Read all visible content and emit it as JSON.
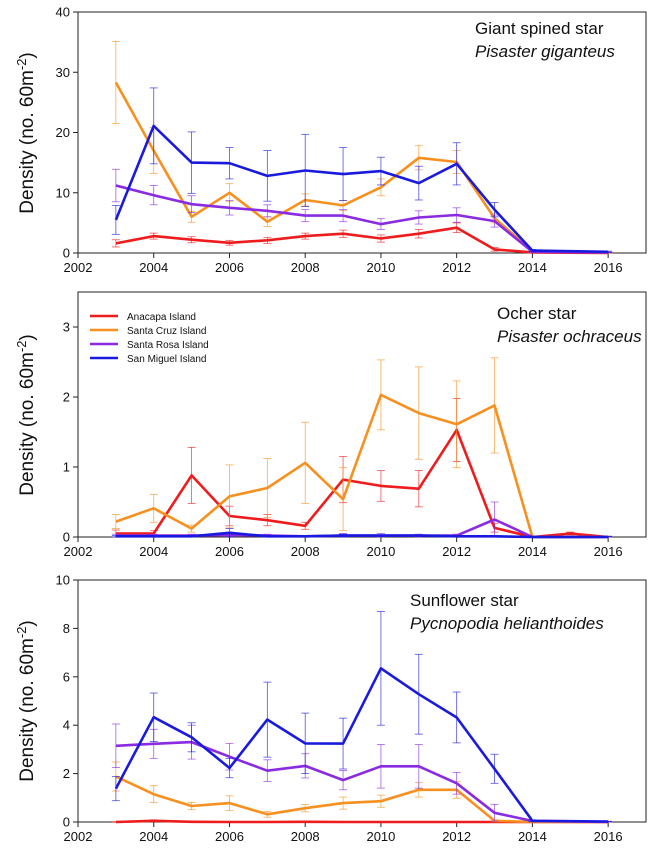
{
  "colors": {
    "Anacapa Island": "#ee1c1c",
    "Santa Cruz Island": "#f7901e",
    "Santa Rosa Island": "#8a2be2",
    "San Miguel Island": "#1a1adf"
  },
  "legend": [
    "Anacapa Island",
    "Santa Cruz Island",
    "Santa Rosa Island",
    "San Miguel Island"
  ],
  "chart_data": [
    {
      "type": "line",
      "title": "Giant spined star",
      "subtitle": "Pisaster giganteus",
      "ylabel_main": "Density (no. 60m",
      "ylabel_sup": "-2",
      "ylabel_tail": ")",
      "xlim": [
        2002,
        2017
      ],
      "ylim": [
        0,
        40
      ],
      "xticks": [
        2002,
        2004,
        2006,
        2008,
        2010,
        2012,
        2014,
        2016
      ],
      "yticks": [
        0,
        10,
        20,
        30,
        40
      ],
      "x": [
        2003,
        2004,
        2005,
        2006,
        2007,
        2008,
        2009,
        2010,
        2011,
        2012,
        2013,
        2014,
        2016
      ],
      "series": [
        {
          "name": "Anacapa Island",
          "values": [
            1.6,
            2.8,
            2.2,
            1.7,
            2.1,
            2.8,
            3.2,
            2.4,
            3.2,
            4.2,
            0.6,
            0.1,
            0.0
          ],
          "err": [
            0.6,
            0.5,
            0.5,
            0.4,
            0.5,
            0.5,
            0.6,
            0.6,
            0.7,
            0.8,
            0.3,
            0.1,
            0.05
          ]
        },
        {
          "name": "Santa Cruz Island",
          "values": [
            28.3,
            17.0,
            6.0,
            10.0,
            5.2,
            8.8,
            7.9,
            10.9,
            15.8,
            15.1,
            5.8,
            0.3,
            0.1
          ],
          "err": [
            6.8,
            3.8,
            0.9,
            1.5,
            0.8,
            1.0,
            0.8,
            1.4,
            2.0,
            1.9,
            0.8,
            0.2,
            0.1
          ]
        },
        {
          "name": "Santa Rosa Island",
          "values": [
            11.2,
            9.6,
            8.1,
            7.5,
            7.0,
            6.2,
            6.2,
            4.8,
            5.9,
            6.3,
            5.3,
            0.2,
            0.1
          ],
          "err": [
            2.7,
            1.6,
            1.4,
            1.2,
            1.0,
            1.0,
            1.0,
            0.9,
            1.1,
            1.2,
            1.0,
            0.1,
            0.05
          ]
        },
        {
          "name": "San Miguel Island",
          "values": [
            5.5,
            21.1,
            15.0,
            14.9,
            12.8,
            13.7,
            13.1,
            13.6,
            11.6,
            14.8,
            7.2,
            0.4,
            0.2
          ],
          "err": [
            2.4,
            6.3,
            5.1,
            2.6,
            4.2,
            6.0,
            4.4,
            2.3,
            2.8,
            3.5,
            1.2,
            0.2,
            0.1
          ]
        }
      ]
    },
    {
      "type": "line",
      "title": "Ocher star",
      "subtitle": "Pisaster ochraceus",
      "ylabel_main": "Density (no. 60m",
      "ylabel_sup": "-2",
      "ylabel_tail": ")",
      "xlim": [
        2002,
        2017
      ],
      "ylim": [
        0,
        3.5
      ],
      "xticks": [
        2002,
        2004,
        2006,
        2008,
        2010,
        2012,
        2014,
        2016
      ],
      "yticks": [
        0,
        1,
        2,
        3
      ],
      "x": [
        2003,
        2004,
        2005,
        2006,
        2007,
        2008,
        2009,
        2010,
        2011,
        2012,
        2013,
        2014,
        2015,
        2016
      ],
      "series": [
        {
          "name": "Anacapa Island",
          "values": [
            0.05,
            0.05,
            0.88,
            0.3,
            0.24,
            0.16,
            0.82,
            0.73,
            0.69,
            1.53,
            0.13,
            0.0,
            0.05,
            0.0
          ],
          "err": [
            0.05,
            0.04,
            0.4,
            0.14,
            0.08,
            0.05,
            0.33,
            0.22,
            0.26,
            0.45,
            0.06,
            0.01,
            0.02,
            0.01
          ]
        },
        {
          "name": "Santa Cruz Island",
          "values": [
            0.22,
            0.41,
            0.12,
            0.58,
            0.7,
            1.06,
            0.54,
            2.03,
            1.77,
            1.61,
            1.88,
            0.0,
            0.0,
            0.0
          ],
          "err": [
            0.1,
            0.2,
            0.05,
            0.45,
            0.42,
            0.58,
            0.45,
            0.5,
            0.66,
            0.62,
            0.68,
            0.01,
            0.01,
            0.01
          ]
        },
        {
          "name": "Santa Rosa Island",
          "values": [
            0.02,
            0.02,
            0.02,
            0.03,
            0.02,
            0.01,
            0.02,
            0.02,
            0.02,
            0.02,
            0.25,
            0.0,
            0.0,
            0.0
          ],
          "err": [
            0.02,
            0.02,
            0.02,
            0.02,
            0.02,
            0.01,
            0.03,
            0.03,
            0.02,
            0.02,
            0.25,
            0.01,
            0.01,
            0.01
          ]
        },
        {
          "name": "San Miguel Island",
          "values": [
            0.01,
            0.01,
            0.01,
            0.06,
            0.01,
            0.01,
            0.02,
            0.02,
            0.02,
            0.01,
            0.01,
            0.0,
            0.0,
            0.0
          ],
          "err": [
            0.01,
            0.01,
            0.01,
            0.06,
            0.01,
            0.01,
            0.02,
            0.01,
            0.01,
            0.01,
            0.01,
            0.01,
            0.01,
            0.01
          ]
        }
      ]
    },
    {
      "type": "line",
      "title": "Sunflower star",
      "subtitle": "Pycnopodia helianthoides",
      "ylabel_main": "Density (no. 60m",
      "ylabel_sup": "-2",
      "ylabel_tail": ")",
      "xlim": [
        2002,
        2017
      ],
      "ylim": [
        0,
        10
      ],
      "xticks": [
        2002,
        2004,
        2006,
        2008,
        2010,
        2012,
        2014,
        2016
      ],
      "yticks": [
        0,
        2,
        4,
        6,
        8,
        10
      ],
      "x": [
        2003,
        2004,
        2005,
        2006,
        2007,
        2008,
        2009,
        2010,
        2011,
        2012,
        2013,
        2014,
        2016
      ],
      "series": [
        {
          "name": "Anacapa Island",
          "values": [
            0.0,
            0.05,
            0.01,
            0.0,
            0.0,
            0.01,
            0.0,
            0.0,
            0.0,
            0.0,
            0.0,
            0.0,
            0.0
          ],
          "err": [
            0.01,
            0.04,
            0.01,
            0.01,
            0.01,
            0.01,
            0.01,
            0.01,
            0.01,
            0.01,
            0.01,
            0.01,
            0.01
          ]
        },
        {
          "name": "Santa Cruz Island",
          "values": [
            1.88,
            1.15,
            0.66,
            0.78,
            0.32,
            0.57,
            0.78,
            0.86,
            1.33,
            1.33,
            0.05,
            0.0,
            0.0
          ],
          "err": [
            0.6,
            0.35,
            0.15,
            0.3,
            0.12,
            0.15,
            0.25,
            0.25,
            0.3,
            0.35,
            0.04,
            0.01,
            0.01
          ]
        },
        {
          "name": "Santa Rosa Island",
          "values": [
            3.15,
            3.23,
            3.3,
            2.7,
            2.12,
            2.32,
            1.73,
            2.3,
            2.3,
            1.6,
            0.38,
            0.04,
            0.0
          ],
          "err": [
            0.9,
            0.6,
            0.7,
            0.55,
            0.45,
            0.5,
            0.4,
            0.9,
            0.9,
            0.45,
            0.35,
            0.03,
            0.01
          ]
        },
        {
          "name": "San Miguel Island",
          "values": [
            1.38,
            4.33,
            3.5,
            2.23,
            4.23,
            3.25,
            3.24,
            6.35,
            5.28,
            4.32,
            2.2,
            0.05,
            0.02
          ],
          "err": [
            0.5,
            1.0,
            0.6,
            0.4,
            1.55,
            1.25,
            1.05,
            2.35,
            1.65,
            1.05,
            0.6,
            0.04,
            0.01
          ]
        }
      ]
    }
  ]
}
